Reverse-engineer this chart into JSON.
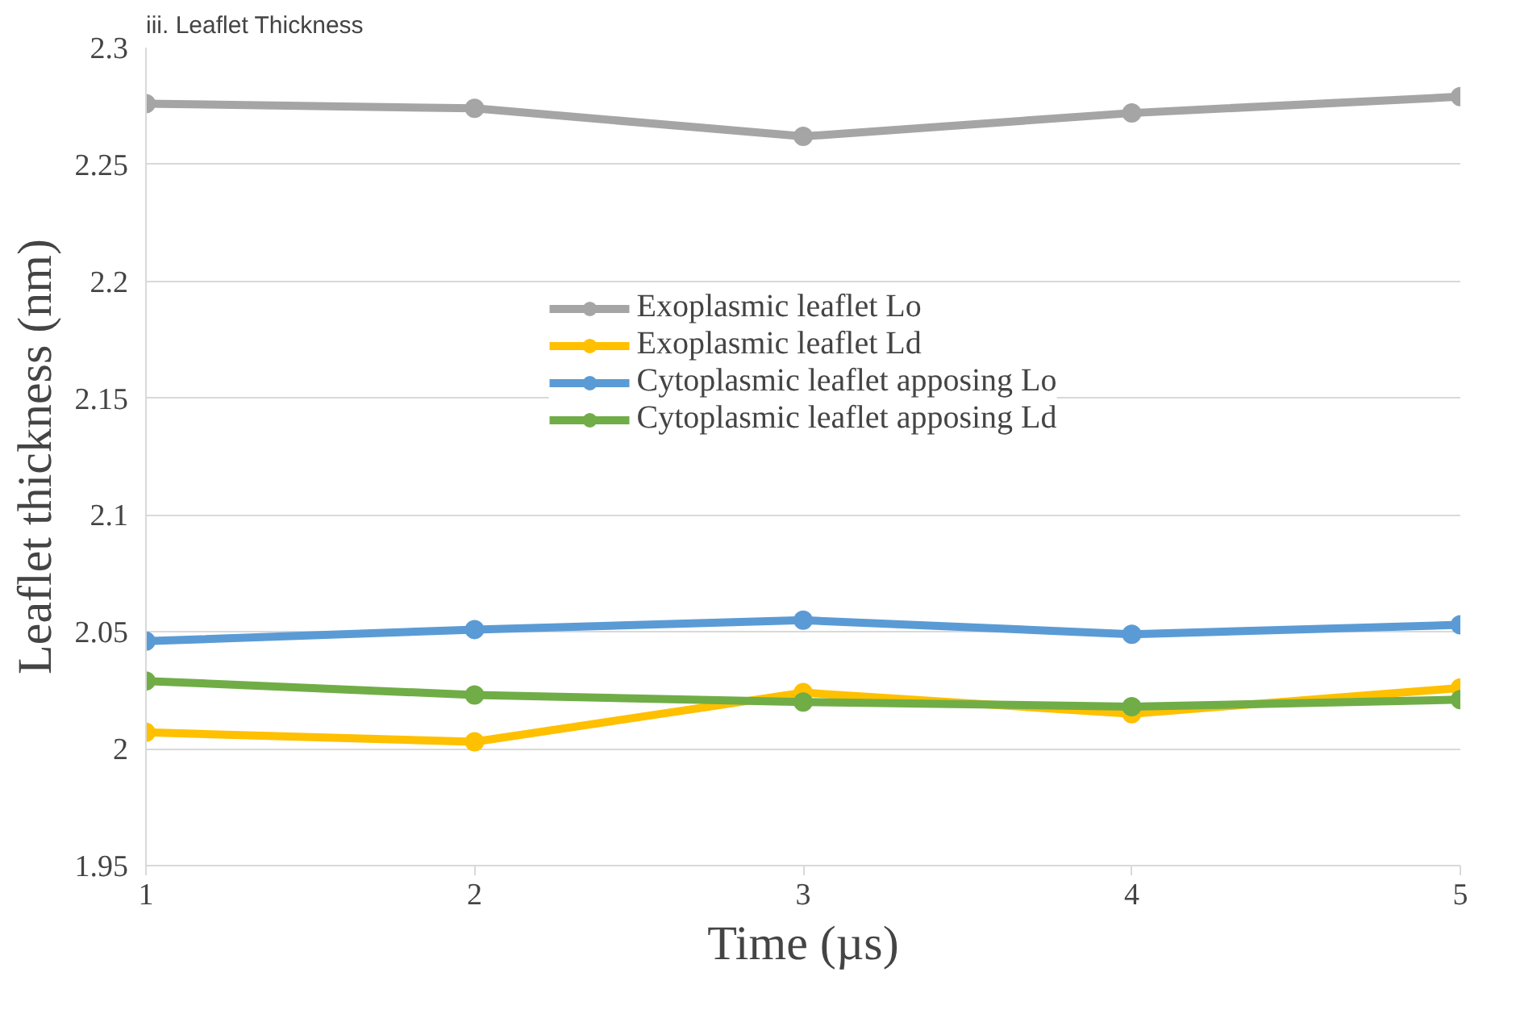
{
  "chart_data": {
    "type": "line",
    "title": "iii. Leaflet Thickness",
    "xlabel": "Time (µs)",
    "ylabel": "Leaflet thickness (nm)",
    "x": [
      1,
      2,
      3,
      4,
      5
    ],
    "xlim": [
      1,
      5
    ],
    "xticks": [
      1,
      2,
      3,
      4,
      5
    ],
    "ylim": [
      1.95,
      2.3
    ],
    "yticks": [
      1.95,
      2,
      2.05,
      2.1,
      2.15,
      2.2,
      2.25,
      2.3
    ],
    "grid": "y",
    "legend": "top",
    "marker": "circle",
    "line_style": "solid",
    "series": [
      {
        "name": "Exoplasmic leaflet Lo",
        "color": "#a5a5a5",
        "values": [
          2.276,
          2.274,
          2.262,
          2.272,
          2.279
        ]
      },
      {
        "name": "Exoplasmic leaflet Ld",
        "color": "#ffc000",
        "values": [
          2.007,
          2.003,
          2.024,
          2.015,
          2.026
        ]
      },
      {
        "name": "Cytoplasmic leaflet apposing Lo",
        "color": "#5b9bd5",
        "values": [
          2.046,
          2.051,
          2.055,
          2.049,
          2.053
        ]
      },
      {
        "name": "Cytoplasmic leaflet apposing Ld",
        "color": "#70ad47",
        "values": [
          2.029,
          2.023,
          2.02,
          2.018,
          2.021
        ]
      }
    ]
  }
}
